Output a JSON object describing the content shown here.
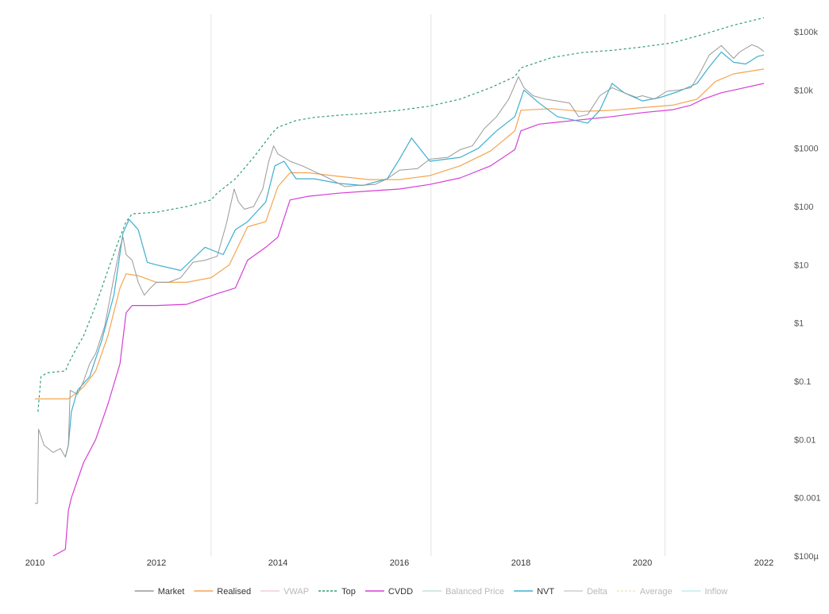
{
  "chart_data": {
    "type": "line",
    "title": "",
    "xlabel": "",
    "ylabel": "",
    "y_scale": "log",
    "x_range": [
      2010.0,
      2022.0
    ],
    "y_range": [
      0.0001,
      200000
    ],
    "x_ticks": [
      2010,
      2012,
      2014,
      2016,
      2018,
      2020,
      2022
    ],
    "x_tick_labels": [
      "2010",
      "2012",
      "2014",
      "2016",
      "2018",
      "2020",
      "2022"
    ],
    "y_ticks": [
      0.0001,
      0.001,
      0.01,
      0.1,
      1,
      10,
      100,
      1000,
      10000,
      100000
    ],
    "y_tick_labels": [
      "$100µ",
      "$0.001",
      "$0.01",
      "$0.1",
      "$1",
      "$10",
      "$100",
      "$1000",
      "$10k",
      "$100k"
    ],
    "y_axis_position": "right",
    "grid": false,
    "vertical_markers": [
      2012.9,
      2016.52,
      2020.37
    ],
    "legend_position": "bottom",
    "legend": [
      {
        "name": "Market",
        "color": "#999999",
        "style": "solid",
        "active": true
      },
      {
        "name": "Realised",
        "color": "#f5a44e",
        "style": "solid",
        "active": true
      },
      {
        "name": "VWAP",
        "color": "#e7a3c4",
        "style": "solid",
        "active": false
      },
      {
        "name": "Top",
        "color": "#2e9e6f",
        "style": "dotted",
        "active": true
      },
      {
        "name": "CVDD",
        "color": "#d63ed6",
        "style": "solid",
        "active": true
      },
      {
        "name": "Balanced Price",
        "color": "#8fc8c0",
        "style": "solid",
        "active": false
      },
      {
        "name": "NVT",
        "color": "#3fafd0",
        "style": "solid",
        "active": true
      },
      {
        "name": "Delta",
        "color": "#b0a0b0",
        "style": "solid",
        "active": false
      },
      {
        "name": "Average",
        "color": "#e8d08a",
        "style": "dotted",
        "active": false
      },
      {
        "name": "Inflow",
        "color": "#8cdce4",
        "style": "solid",
        "active": false
      }
    ],
    "series": [
      {
        "name": "Top",
        "x": [
          2010.05,
          2010.1,
          2010.2,
          2010.5,
          2010.55,
          2010.7,
          2010.8,
          2011.0,
          2011.2,
          2011.4,
          2011.5,
          2011.6,
          2012.0,
          2012.5,
          2012.9,
          2013.0,
          2013.3,
          2013.6,
          2013.9,
          2014.0,
          2014.3,
          2014.6,
          2015.0,
          2015.5,
          2016.0,
          2016.5,
          2017.0,
          2017.5,
          2017.9,
          2018.0,
          2018.5,
          2019.0,
          2019.5,
          2020.0,
          2020.5,
          2021.0,
          2021.5,
          2022.0
        ],
        "values": [
          0.03,
          0.12,
          0.14,
          0.15,
          0.2,
          0.4,
          0.6,
          2.0,
          8,
          30,
          55,
          75,
          80,
          100,
          130,
          170,
          300,
          700,
          1800,
          2300,
          3000,
          3400,
          3700,
          4000,
          4500,
          5300,
          7000,
          11000,
          17000,
          24000,
          36000,
          44000,
          48000,
          55000,
          65000,
          90000,
          130000,
          175000
        ]
      },
      {
        "name": "Market",
        "x": [
          2010.0,
          2010.04,
          2010.06,
          2010.15,
          2010.3,
          2010.42,
          2010.5,
          2010.55,
          2010.58,
          2010.7,
          2010.8,
          2010.9,
          2011.0,
          2011.15,
          2011.3,
          2011.4,
          2011.45,
          2011.5,
          2011.6,
          2011.7,
          2011.8,
          2011.9,
          2012.0,
          2012.2,
          2012.4,
          2012.6,
          2012.8,
          2013.0,
          2013.15,
          2013.28,
          2013.35,
          2013.45,
          2013.6,
          2013.75,
          2013.85,
          2013.93,
          2014.0,
          2014.2,
          2014.4,
          2014.6,
          2014.8,
          2015.0,
          2015.1,
          2015.3,
          2015.6,
          2015.8,
          2016.0,
          2016.3,
          2016.5,
          2016.8,
          2017.0,
          2017.2,
          2017.4,
          2017.6,
          2017.8,
          2017.96,
          2018.05,
          2018.2,
          2018.4,
          2018.6,
          2018.8,
          2018.95,
          2019.1,
          2019.3,
          2019.5,
          2019.7,
          2019.9,
          2020.0,
          2020.2,
          2020.4,
          2020.6,
          2020.8,
          2020.95,
          2021.1,
          2021.3,
          2021.5,
          2021.6,
          2021.8,
          2021.9,
          2022.0
        ],
        "values": [
          0.0008,
          0.0008,
          0.015,
          0.008,
          0.006,
          0.007,
          0.005,
          0.008,
          0.07,
          0.06,
          0.1,
          0.2,
          0.3,
          0.9,
          6,
          20,
          30,
          15,
          12,
          5,
          3,
          4,
          5,
          5,
          6,
          11,
          12,
          14,
          50,
          200,
          120,
          90,
          100,
          200,
          600,
          1100,
          800,
          600,
          500,
          400,
          320,
          250,
          220,
          230,
          240,
          300,
          420,
          450,
          650,
          700,
          950,
          1100,
          2200,
          3500,
          7000,
          17000,
          11000,
          8000,
          7000,
          6500,
          6000,
          3500,
          3800,
          8000,
          11000,
          9000,
          7500,
          8000,
          7000,
          9500,
          10000,
          11000,
          20000,
          40000,
          58000,
          35000,
          45000,
          60000,
          55000,
          46000
        ]
      },
      {
        "name": "Realised",
        "x": [
          2010.0,
          2010.4,
          2010.55,
          2010.7,
          2010.8,
          2011.0,
          2011.2,
          2011.4,
          2011.5,
          2011.7,
          2012.0,
          2012.5,
          2012.9,
          2013.2,
          2013.5,
          2013.8,
          2014.0,
          2014.2,
          2014.5,
          2015.0,
          2015.5,
          2016.0,
          2016.5,
          2017.0,
          2017.5,
          2017.9,
          2018.0,
          2018.5,
          2019.0,
          2019.5,
          2020.0,
          2020.5,
          2020.9,
          2021.2,
          2021.5,
          2022.0
        ],
        "values": [
          0.05,
          0.05,
          0.05,
          0.065,
          0.08,
          0.15,
          0.6,
          4,
          7,
          6.5,
          5,
          5,
          6,
          10,
          45,
          55,
          220,
          380,
          380,
          330,
          290,
          290,
          340,
          500,
          900,
          2000,
          4500,
          4800,
          4300,
          4500,
          5000,
          5500,
          7000,
          14000,
          19000,
          23000
        ]
      },
      {
        "name": "NVT",
        "x": [
          2010.5,
          2010.55,
          2010.6,
          2010.7,
          2010.9,
          2011.1,
          2011.3,
          2011.45,
          2011.55,
          2011.7,
          2011.85,
          2012.0,
          2012.4,
          2012.8,
          2013.1,
          2013.3,
          2013.5,
          2013.8,
          2013.95,
          2014.1,
          2014.3,
          2014.6,
          2015.0,
          2015.4,
          2015.8,
          2016.0,
          2016.2,
          2016.5,
          2017.0,
          2017.3,
          2017.6,
          2017.9,
          2018.05,
          2018.3,
          2018.6,
          2018.9,
          2019.1,
          2019.3,
          2019.5,
          2019.7,
          2020.0,
          2020.3,
          2020.6,
          2020.9,
          2021.1,
          2021.3,
          2021.5,
          2021.7,
          2021.9,
          2022.0
        ],
        "values": [
          0.005,
          0.008,
          0.03,
          0.07,
          0.12,
          0.5,
          3,
          35,
          60,
          40,
          11,
          10,
          8,
          20,
          15,
          40,
          55,
          120,
          500,
          600,
          300,
          300,
          250,
          230,
          300,
          650,
          1500,
          600,
          700,
          1000,
          2000,
          3500,
          10000,
          6000,
          3500,
          3000,
          2700,
          4500,
          13000,
          9000,
          6500,
          7500,
          9500,
          13000,
          25000,
          45000,
          30000,
          28000,
          38000,
          40000
        ]
      },
      {
        "name": "CVDD",
        "x": [
          2010.3,
          2010.5,
          2010.55,
          2010.6,
          2010.8,
          2011.0,
          2011.2,
          2011.4,
          2011.5,
          2011.6,
          2012.0,
          2012.5,
          2013.0,
          2013.3,
          2013.5,
          2013.8,
          2014.0,
          2014.2,
          2014.5,
          2015.0,
          2015.5,
          2016.0,
          2016.5,
          2017.0,
          2017.5,
          2017.9,
          2018.0,
          2018.3,
          2018.6,
          2019.0,
          2019.5,
          2020.0,
          2020.5,
          2020.8,
          2021.0,
          2021.3,
          2021.6,
          2022.0
        ],
        "values": [
          0.0001,
          0.00013,
          0.0006,
          0.001,
          0.004,
          0.01,
          0.04,
          0.2,
          1.5,
          2.0,
          2.0,
          2.1,
          3.2,
          4.0,
          12,
          20,
          30,
          130,
          150,
          170,
          185,
          200,
          240,
          310,
          500,
          950,
          2000,
          2600,
          2800,
          3100,
          3500,
          4100,
          4600,
          5500,
          7000,
          9000,
          10500,
          13000
        ]
      }
    ]
  }
}
